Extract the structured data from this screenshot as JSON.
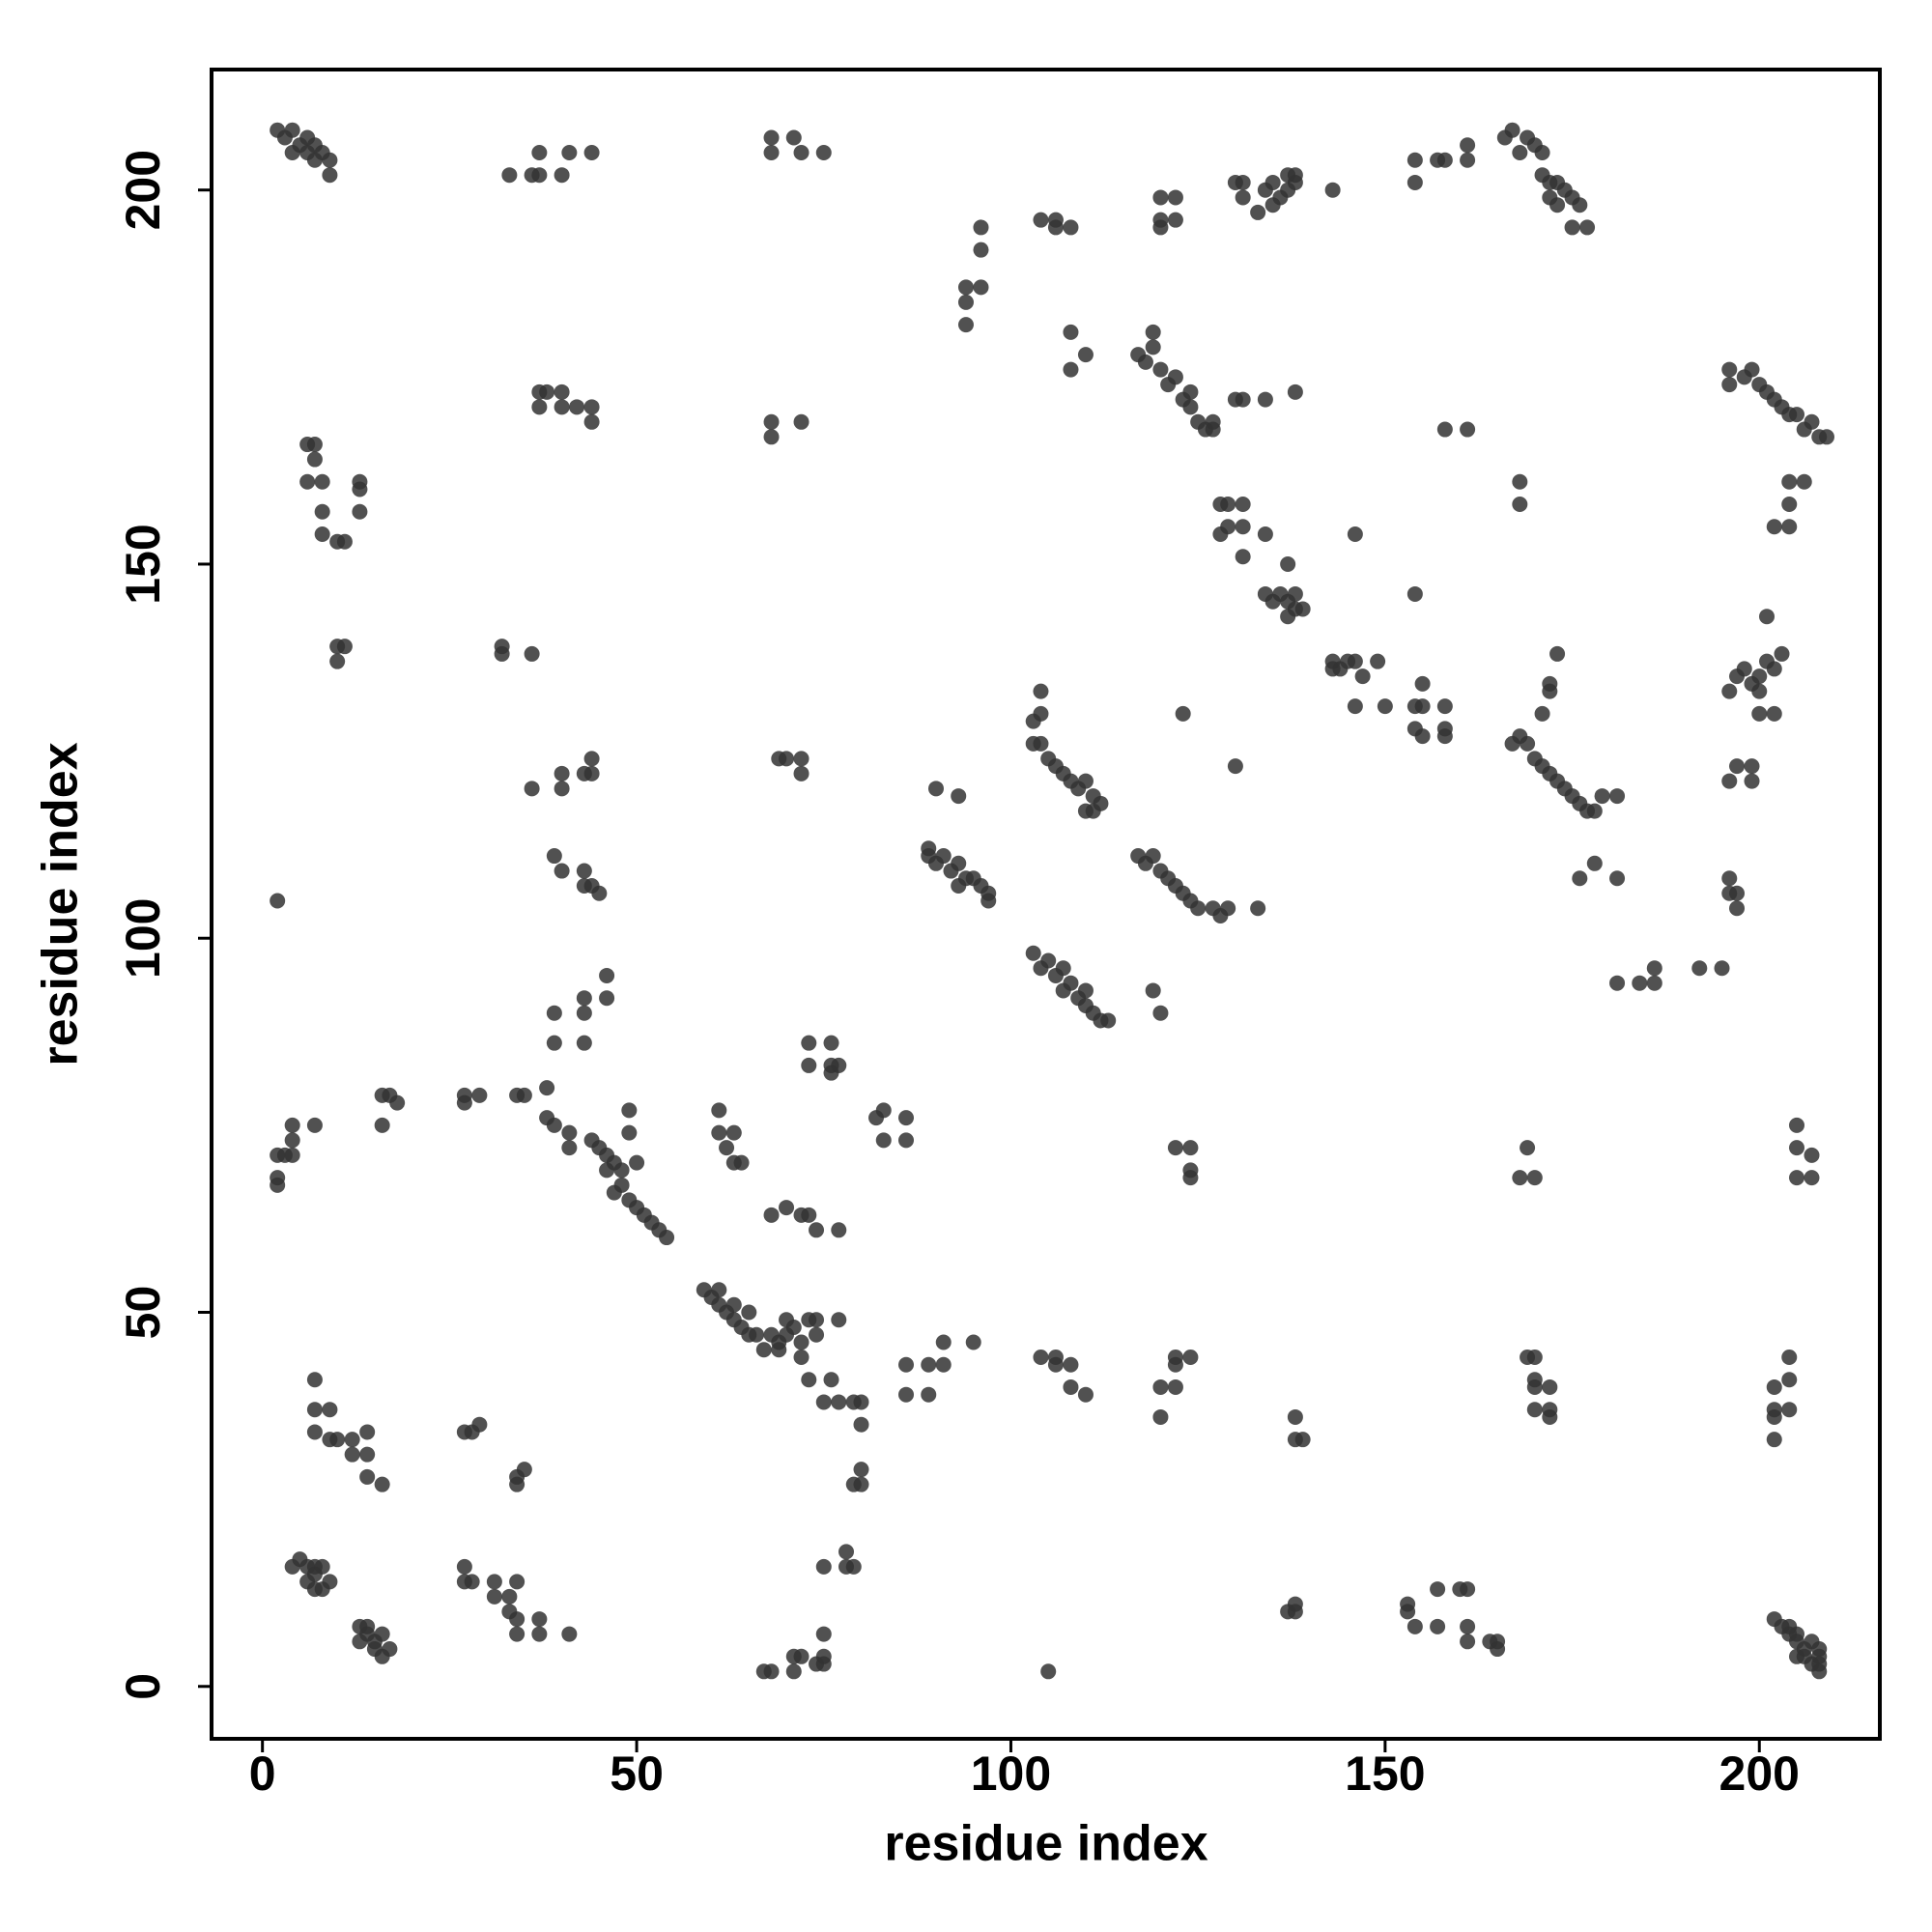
{
  "chart_data": {
    "type": "scatter",
    "xlabel": "residue index",
    "ylabel": "residue index",
    "xlim": [
      -6.8,
      216.1
    ],
    "ylim": [
      -7,
      216.1
    ],
    "xticks": [
      0,
      50,
      100,
      150,
      200
    ],
    "yticks": [
      0,
      50,
      100,
      150,
      200
    ],
    "color": "#333333",
    "x": [
      2,
      3,
      4,
      5,
      4,
      6,
      6,
      7,
      7,
      8,
      9,
      9,
      33,
      36,
      37,
      37,
      40,
      41,
      44,
      68,
      68,
      71,
      72,
      75,
      94,
      94,
      94,
      96,
      96,
      96,
      104,
      106,
      106,
      108,
      108,
      108,
      110,
      120,
      120,
      120,
      122,
      122,
      130,
      131,
      131,
      133,
      134,
      135,
      135,
      136,
      137,
      137,
      138,
      138,
      143,
      154,
      154,
      157,
      158,
      161,
      161,
      166,
      167,
      168,
      169,
      170,
      171,
      171,
      172,
      173,
      172,
      173,
      174,
      175,
      175,
      176,
      177,
      117,
      118,
      119,
      119,
      120,
      121,
      122,
      123,
      124,
      124,
      125,
      126,
      127,
      127,
      130,
      131,
      134,
      138,
      158,
      161,
      168,
      168,
      196,
      196,
      198,
      199,
      200,
      201,
      202,
      203,
      204,
      205,
      206,
      207,
      208,
      209,
      204,
      206,
      204,
      204,
      202,
      6,
      7,
      7,
      6,
      8,
      8,
      8,
      10,
      11,
      13,
      13,
      13,
      37,
      37,
      38,
      40,
      40,
      42,
      44,
      44,
      68,
      68,
      72,
      128,
      129,
      128,
      129,
      131,
      131,
      131,
      134,
      134,
      136,
      135,
      137,
      137,
      138,
      138,
      139,
      137,
      146,
      143,
      143,
      144,
      145,
      146,
      147,
      149,
      146,
      150,
      154,
      155,
      154,
      155,
      155,
      154,
      158,
      158,
      158,
      10,
      11,
      10,
      32,
      32,
      36,
      2,
      36,
      40,
      40,
      44,
      44,
      43,
      69,
      70,
      72,
      72,
      39,
      40,
      43,
      43,
      44,
      45,
      90,
      93,
      104,
      104,
      103,
      103,
      104,
      105,
      106,
      107,
      108,
      109,
      110,
      111,
      112,
      111,
      110,
      123,
      130,
      167,
      168,
      169,
      170,
      171,
      172,
      173,
      174,
      175,
      176,
      177,
      178,
      179,
      181,
      171,
      172,
      172,
      173,
      176,
      178,
      181,
      196,
      197,
      198,
      199,
      200,
      200,
      201,
      202,
      203,
      201,
      200,
      202,
      196,
      197,
      199,
      199,
      196,
      196,
      197,
      197,
      89,
      89,
      90,
      91,
      92,
      93,
      94,
      95,
      96,
      97,
      97,
      93,
      117,
      118,
      119,
      120,
      121,
      122,
      123,
      124,
      125,
      127,
      128,
      129,
      133,
      103,
      104,
      105,
      106,
      107,
      107,
      108,
      109,
      110,
      110,
      111,
      112,
      113,
      119,
      120,
      181,
      184,
      186,
      186,
      192,
      195,
      39,
      39,
      43,
      43,
      43,
      46,
      46,
      73,
      76,
      73,
      76,
      77,
      76,
      2,
      2,
      2,
      3,
      4,
      4,
      4,
      7,
      16,
      16,
      17,
      18,
      27,
      27,
      29,
      34,
      35,
      38,
      38,
      39,
      41,
      41,
      44,
      45,
      46,
      46,
      47,
      48,
      48,
      47,
      49,
      50,
      51,
      52,
      53,
      54,
      49,
      49,
      50,
      61,
      61,
      63,
      63,
      64,
      62,
      82,
      83,
      83,
      86,
      86,
      68,
      70,
      72,
      73,
      74,
      77,
      168,
      169,
      170,
      122,
      124,
      124,
      124,
      205,
      205,
      205,
      207,
      207,
      59,
      60,
      61,
      61,
      62,
      63,
      63,
      64,
      65,
      65,
      66,
      67,
      68,
      69,
      69,
      70,
      70,
      71,
      72,
      72,
      73,
      73,
      74,
      74,
      76,
      75,
      77,
      77,
      86,
      86,
      89,
      89,
      91,
      91,
      95,
      79,
      80,
      80,
      80,
      79,
      80,
      7,
      7,
      7,
      9,
      9,
      10,
      12,
      12,
      14,
      14,
      14,
      16,
      27,
      28,
      29,
      34,
      34,
      35,
      104,
      106,
      106,
      108,
      108,
      110,
      120,
      120,
      122,
      122,
      122,
      124,
      138,
      138,
      139,
      169,
      170,
      170,
      170,
      170,
      172,
      172,
      172,
      202,
      202,
      202,
      202,
      204,
      204,
      204,
      4,
      5,
      6,
      6,
      7,
      7,
      7,
      8,
      8,
      9,
      13,
      13,
      14,
      14,
      15,
      15,
      16,
      16,
      17,
      27,
      27,
      28,
      31,
      31,
      33,
      33,
      34,
      34,
      34,
      37,
      37,
      41,
      67,
      68,
      71,
      71,
      72,
      74,
      75,
      75,
      75,
      75,
      78,
      78,
      79,
      105,
      137,
      138,
      138,
      153,
      153,
      154,
      157,
      157,
      160,
      161,
      161,
      161,
      164,
      165,
      165,
      202,
      203,
      204,
      204,
      205,
      205,
      206,
      206,
      207,
      207,
      208,
      208,
      208,
      208,
      205
    ],
    "values": [
      208,
      207,
      208,
      206,
      205,
      207,
      205,
      206,
      204,
      205,
      204,
      202,
      202,
      202,
      205,
      202,
      202,
      205,
      205,
      207,
      205,
      207,
      205,
      205,
      182,
      185,
      187,
      187,
      192,
      195,
      196,
      196,
      195,
      195,
      181,
      176,
      178,
      199,
      195,
      196,
      199,
      196,
      201,
      199,
      201,
      197,
      200,
      201,
      198,
      199,
      200,
      202,
      201,
      202,
      200,
      204,
      201,
      204,
      204,
      206,
      204,
      207,
      208,
      205,
      207,
      206,
      205,
      202,
      201,
      201,
      199,
      198,
      200,
      199,
      195,
      198,
      195,
      178,
      177,
      181,
      179,
      176,
      174,
      175,
      172,
      173,
      171,
      169,
      168,
      168,
      169,
      172,
      172,
      172,
      173,
      168,
      168,
      161,
      158,
      176,
      174,
      175,
      176,
      174,
      173,
      172,
      171,
      170,
      170,
      168,
      169,
      167,
      167,
      161,
      161,
      158,
      155,
      155,
      166,
      166,
      164,
      161,
      157,
      161,
      154,
      153,
      153,
      160,
      161,
      157,
      173,
      171,
      173,
      173,
      171,
      171,
      171,
      169,
      169,
      167,
      169,
      158,
      158,
      154,
      155,
      158,
      155,
      151,
      154,
      146,
      146,
      145,
      145,
      143,
      146,
      144,
      144,
      150,
      154,
      137,
      136,
      136,
      137,
      137,
      135,
      137,
      131,
      131,
      131,
      131,
      128,
      127,
      134,
      146,
      131,
      128,
      127,
      139,
      139,
      137,
      139,
      138,
      138,
      105,
      120,
      122,
      120,
      124,
      122,
      122,
      124,
      124,
      124,
      122,
      111,
      109,
      109,
      107,
      107,
      106,
      120,
      119,
      133,
      130,
      129,
      126,
      126,
      124,
      123,
      122,
      121,
      120,
      121,
      119,
      118,
      117,
      117,
      130,
      123,
      126,
      127,
      126,
      124,
      123,
      122,
      121,
      120,
      119,
      118,
      117,
      117,
      119,
      119,
      130,
      133,
      134,
      138,
      108,
      110,
      108,
      133,
      135,
      136,
      134,
      133,
      135,
      137,
      136,
      138,
      143,
      130,
      130,
      121,
      123,
      123,
      121,
      108,
      106,
      106,
      104,
      112,
      111,
      110,
      111,
      109,
      110,
      108,
      108,
      107,
      106,
      105,
      107,
      111,
      110,
      111,
      109,
      108,
      107,
      106,
      105,
      104,
      104,
      103,
      104,
      104,
      98,
      96,
      97,
      95,
      93,
      96,
      94,
      92,
      93,
      91,
      90,
      89,
      89,
      93,
      90,
      94,
      94,
      94,
      96,
      96,
      96,
      90,
      86,
      92,
      90,
      86,
      95,
      92,
      86,
      86,
      83,
      83,
      83,
      82,
      71,
      68,
      67,
      71,
      75,
      73,
      71,
      75,
      79,
      75,
      79,
      78,
      79,
      78,
      79,
      79,
      79,
      80,
      76,
      75,
      74,
      72,
      73,
      72,
      71,
      69,
      70,
      69,
      67,
      66,
      65,
      64,
      63,
      62,
      61,
      60,
      77,
      74,
      70,
      77,
      74,
      74,
      70,
      70,
      72,
      76,
      77,
      73,
      76,
      73,
      63,
      64,
      63,
      63,
      61,
      61,
      68,
      72,
      68,
      72,
      72,
      69,
      68,
      75,
      72,
      68,
      71,
      68,
      53,
      52,
      53,
      51,
      50,
      51,
      49,
      48,
      50,
      47,
      47,
      45,
      47,
      46,
      45,
      47,
      49,
      48,
      46,
      44,
      49,
      41,
      47,
      49,
      41,
      38,
      38,
      49,
      43,
      39,
      39,
      43,
      46,
      43,
      46,
      38,
      35,
      38,
      29,
      27,
      27,
      41,
      37,
      34,
      37,
      33,
      33,
      33,
      31,
      34,
      31,
      28,
      27,
      34,
      34,
      35,
      28,
      27,
      29,
      44,
      44,
      43,
      43,
      40,
      39,
      40,
      36,
      40,
      44,
      43,
      44,
      36,
      33,
      33,
      44,
      44,
      41,
      40,
      37,
      40,
      37,
      36,
      40,
      37,
      36,
      33,
      44,
      41,
      37,
      16,
      17,
      16,
      14,
      13,
      15,
      16,
      16,
      13,
      14,
      8,
      6,
      7,
      8,
      6,
      5,
      7,
      4,
      5,
      16,
      14,
      14,
      14,
      12,
      12,
      10,
      14,
      9,
      7,
      9,
      7,
      7,
      2,
      2,
      2,
      4,
      4,
      3,
      3,
      4,
      7,
      16,
      18,
      16,
      16,
      2,
      10,
      10,
      11,
      11,
      10,
      8,
      13,
      8,
      13,
      13,
      8,
      6,
      6,
      6,
      5,
      9,
      8,
      7,
      8,
      7,
      6,
      4,
      5,
      6,
      3,
      4,
      2,
      3,
      5,
      4
    ]
  }
}
